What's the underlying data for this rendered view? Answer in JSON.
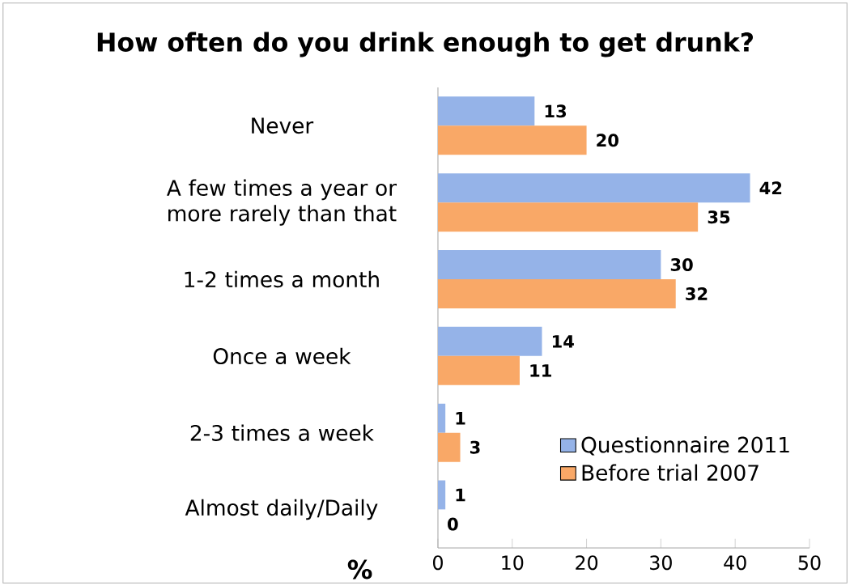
{
  "chart_data": {
    "type": "bar",
    "orientation": "horizontal",
    "title": "How often do you drink enough to get drunk?",
    "xlabel": "%",
    "categories": [
      "Never",
      "A few times a year or more rarely than that",
      "1-2 times a month",
      "Once a week",
      "2-3 times a week",
      "Almost daily/Daily"
    ],
    "series": [
      {
        "name": "Questionnaire 2011",
        "color": "#95b3e8",
        "values": [
          13,
          42,
          30,
          14,
          1,
          1
        ]
      },
      {
        "name": "Before trial 2007",
        "color": "#f9a867",
        "values": [
          20,
          35,
          32,
          11,
          3,
          0
        ]
      }
    ],
    "xlim": [
      0,
      50
    ],
    "xticks": [
      0,
      10,
      20,
      30,
      40,
      50
    ],
    "data_labels": true,
    "legend": "bottom right"
  }
}
